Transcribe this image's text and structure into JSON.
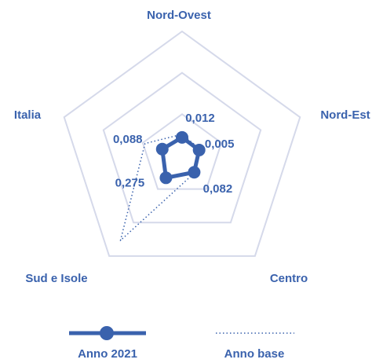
{
  "chart_data": {
    "type": "radar",
    "categories": [
      "Nord-Ovest",
      "Nord-Est",
      "Centro",
      "Sud e Isole",
      "Italia"
    ],
    "rlim": [
      -0.5,
      3
    ],
    "series": [
      {
        "name": "Anno 2021",
        "color": "#3a62ad",
        "style": "solid",
        "values": [
          0.012,
          0.005,
          0.082,
          0.275,
          0.088
        ],
        "value_labels": [
          "0,012",
          "0,005",
          "0,082",
          "0,275",
          "0,088"
        ]
      },
      {
        "name": "Anno base",
        "color": "#3a62ad",
        "style": "dotted",
        "values": [
          0.1,
          0.05,
          0.1,
          2.46,
          0.6
        ]
      }
    ]
  }
}
